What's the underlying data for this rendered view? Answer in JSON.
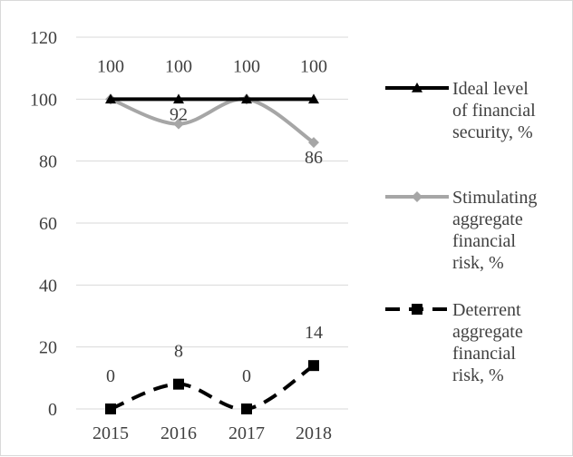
{
  "chart_data": {
    "type": "line",
    "categories": [
      "2015",
      "2016",
      "2017",
      "2018"
    ],
    "ylim": [
      0,
      120
    ],
    "yticks": [
      0,
      20,
      40,
      60,
      80,
      100,
      120
    ],
    "grid": true,
    "legend_position": "right",
    "series": [
      {
        "name": "Ideal level of financial security, %",
        "legend_lines": [
          "Ideal level",
          "of financial",
          "security, %"
        ],
        "values": [
          100,
          100,
          100,
          100
        ],
        "data_labels": [
          "100",
          "100",
          "100",
          "100"
        ],
        "color": "#000000",
        "marker": "triangle",
        "line_style": "solid",
        "smooth": false
      },
      {
        "name": "Stimulating aggregate financial risk, %",
        "legend_lines": [
          "Stimulating",
          "aggregate",
          "financial",
          "risk, %"
        ],
        "values": [
          100,
          92,
          100,
          86
        ],
        "data_labels": [
          "",
          "92",
          "",
          "86"
        ],
        "color": "#a6a6a6",
        "marker": "diamond",
        "line_style": "solid",
        "smooth": true
      },
      {
        "name": "Deterrent aggregate financial risk, %",
        "legend_lines": [
          "Deterrent",
          "aggregate",
          "financial",
          "risk, %"
        ],
        "values": [
          0,
          8,
          0,
          14
        ],
        "data_labels": [
          "0",
          "8",
          "0",
          "14"
        ],
        "color": "#000000",
        "marker": "square",
        "line_style": "dashed",
        "smooth": true
      }
    ]
  }
}
